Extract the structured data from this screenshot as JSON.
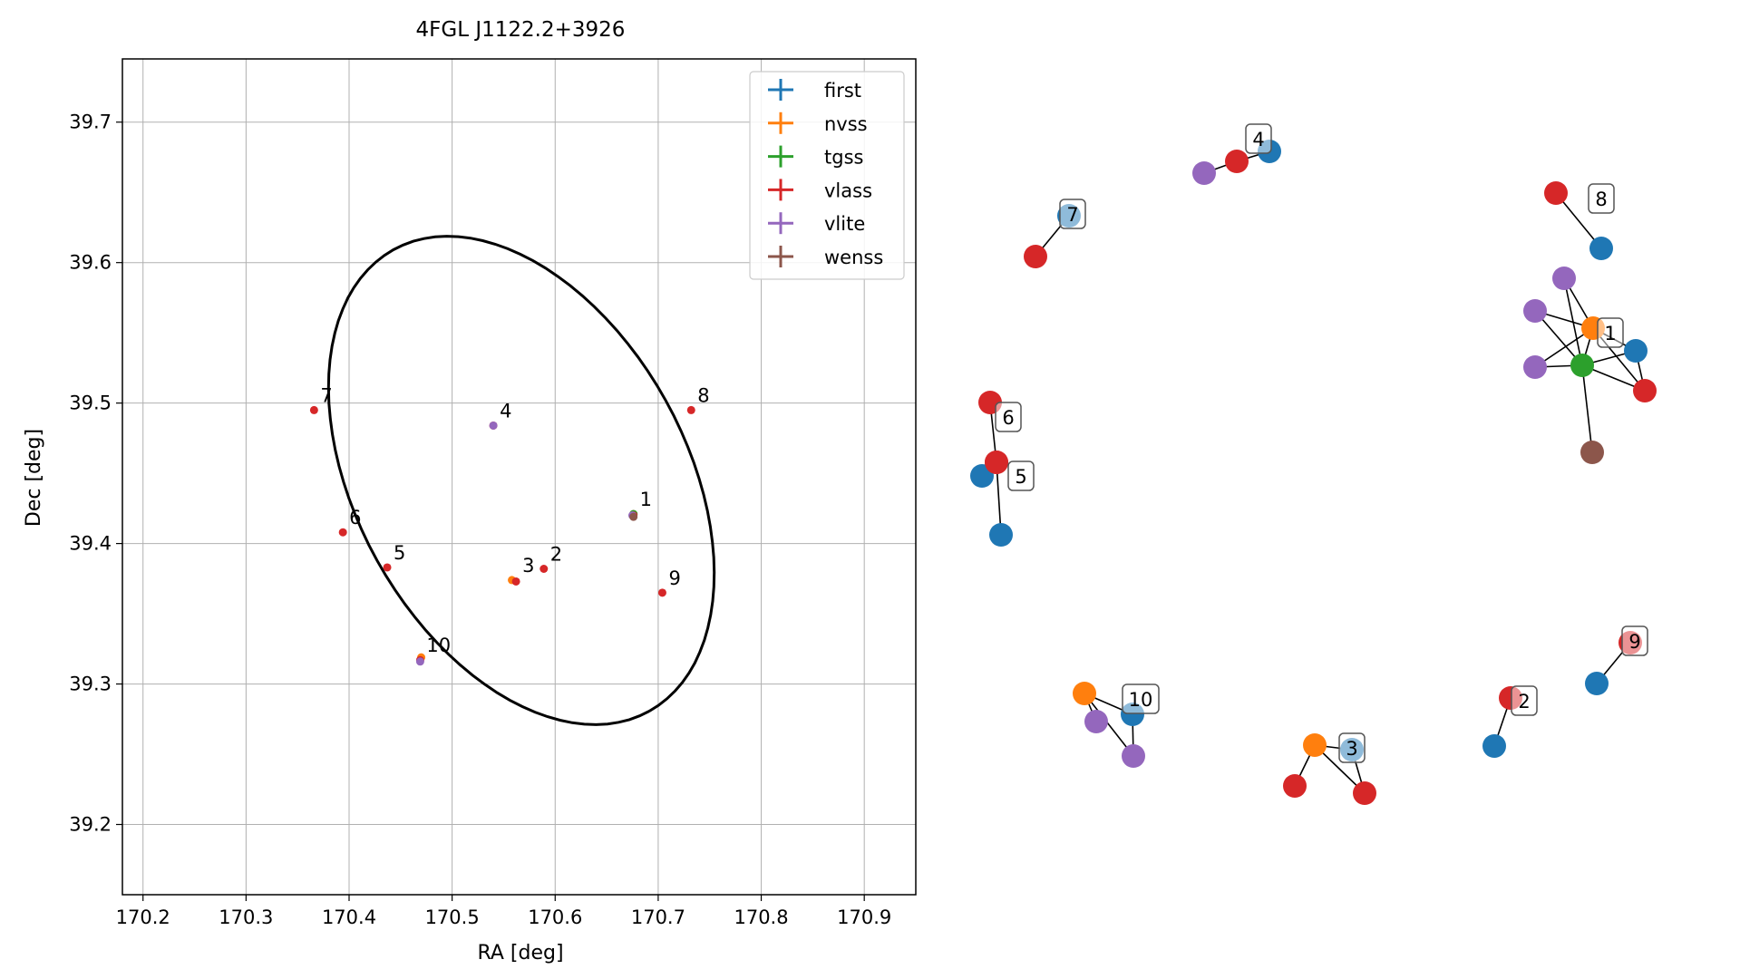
{
  "figure_title": "4FGL J1122.2+3926",
  "chart_data": [
    {
      "type": "scatter",
      "title": "4FGL J1122.2+3926",
      "xlabel": "RA [deg]",
      "ylabel": "Dec [deg]",
      "xlim": [
        170.18,
        170.95
      ],
      "ylim": [
        39.15,
        39.745
      ],
      "xticks": [
        170.2,
        170.3,
        170.4,
        170.5,
        170.6,
        170.7,
        170.8,
        170.9
      ],
      "xtick_labels": [
        "170.2",
        "170.3",
        "170.4",
        "170.5",
        "170.6",
        "170.7",
        "170.8",
        "170.9"
      ],
      "yticks": [
        39.2,
        39.3,
        39.4,
        39.5,
        39.6,
        39.7
      ],
      "ytick_labels": [
        "39.2",
        "39.3",
        "39.4",
        "39.5",
        "39.6",
        "39.7"
      ],
      "grid": true,
      "legend_position": "top-right",
      "series": [
        {
          "name": "first",
          "color": "#1f77b4",
          "points": [
            {
              "x": 170.676,
              "y": 39.421
            }
          ]
        },
        {
          "name": "nvss",
          "color": "#ff7f0e",
          "points": [
            {
              "x": 170.558,
              "y": 39.374
            },
            {
              "x": 170.47,
              "y": 39.319
            },
            {
              "x": 170.676,
              "y": 39.421
            }
          ]
        },
        {
          "name": "tgss",
          "color": "#2ca02c",
          "points": [
            {
              "x": 170.676,
              "y": 39.421
            }
          ]
        },
        {
          "name": "vlass",
          "color": "#d62728",
          "points": [
            {
              "x": 170.676,
              "y": 39.42
            },
            {
              "x": 170.589,
              "y": 39.382
            },
            {
              "x": 170.562,
              "y": 39.373
            },
            {
              "x": 170.54,
              "y": 39.484
            },
            {
              "x": 170.437,
              "y": 39.383
            },
            {
              "x": 170.394,
              "y": 39.408
            },
            {
              "x": 170.366,
              "y": 39.495
            },
            {
              "x": 170.732,
              "y": 39.495
            },
            {
              "x": 170.704,
              "y": 39.365
            },
            {
              "x": 170.469,
              "y": 39.317
            }
          ]
        },
        {
          "name": "vlite",
          "color": "#9467bd",
          "points": [
            {
              "x": 170.54,
              "y": 39.484
            },
            {
              "x": 170.675,
              "y": 39.42
            },
            {
              "x": 170.469,
              "y": 39.316
            }
          ]
        },
        {
          "name": "wenss",
          "color": "#8c564b",
          "points": [
            {
              "x": 170.676,
              "y": 39.419
            }
          ]
        }
      ],
      "annotations": [
        {
          "text": "1",
          "x": 170.676,
          "y": 39.421
        },
        {
          "text": "2",
          "x": 170.589,
          "y": 39.382
        },
        {
          "text": "3",
          "x": 170.562,
          "y": 39.374
        },
        {
          "text": "4",
          "x": 170.54,
          "y": 39.484
        },
        {
          "text": "5",
          "x": 170.437,
          "y": 39.383
        },
        {
          "text": "6",
          "x": 170.394,
          "y": 39.408
        },
        {
          "text": "7",
          "x": 170.366,
          "y": 39.495
        },
        {
          "text": "8",
          "x": 170.732,
          "y": 39.495
        },
        {
          "text": "9",
          "x": 170.704,
          "y": 39.365
        },
        {
          "text": "10",
          "x": 170.469,
          "y": 39.317
        }
      ],
      "ellipse_color": "#000000"
    },
    {
      "type": "diagram",
      "node_colors": {
        "first": "#1f77b4",
        "nvss": "#ff7f0e",
        "tgss": "#2ca02c",
        "vlass": "#d62728",
        "vlite": "#9467bd",
        "wenss": "#8c564b"
      },
      "groups": [
        {
          "label": "1"
        },
        {
          "label": "2"
        },
        {
          "label": "3"
        },
        {
          "label": "4"
        },
        {
          "label": "5"
        },
        {
          "label": "6"
        },
        {
          "label": "7"
        },
        {
          "label": "8"
        },
        {
          "label": "9"
        },
        {
          "label": "10"
        }
      ]
    }
  ]
}
